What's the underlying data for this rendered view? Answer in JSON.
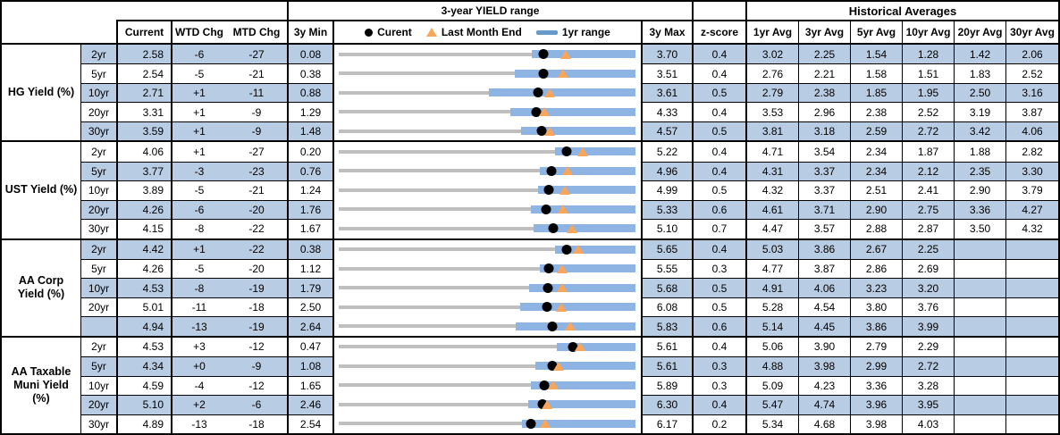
{
  "colors": {
    "stripe": "#B8CCE4",
    "bar": "#8DB4E2",
    "track": "#BFBFBF",
    "marker_current": "#000000",
    "marker_last_month_end": "#F9A65A",
    "border": "#000000"
  },
  "header": {
    "range_title": "3-year YIELD range",
    "hist_title": "Historical Averages",
    "current": "Current",
    "wtd": "WTD Chg",
    "mtd": "MTD Chg",
    "min": "3y Min",
    "max": "3y Max",
    "zscore": "z-score",
    "avgs": [
      "1yr Avg",
      "3yr Avg",
      "5yr Avg",
      "10yr Avg",
      "20yr Avg",
      "30yr Avg"
    ],
    "legend": {
      "current": "Curent",
      "last_month_end": "Last Month End",
      "range": "1yr range"
    }
  },
  "chart_data": {
    "type": "table",
    "title": "3-year YIELD range",
    "note": "Embedded bullet charts: x-axis spans 3y Min to 3y Max per row; black dot = Current, orange triangle = Last Month End (Current - MTD chg/100), blue bar = 1yr range (high coincides with 3y Max).",
    "groups": [
      {
        "label": "HG Yield (%)",
        "rows": [
          {
            "tenor": "2yr",
            "current": "2.58",
            "wtd": "-6",
            "mtd": "-27",
            "min": "0.08",
            "max": "3.70",
            "z": "0.4",
            "avgs": [
              "3.02",
              "2.25",
              "1.54",
              "1.28",
              "1.42",
              "2.06"
            ],
            "yr1_low": 2.43,
            "yr1_high": 3.7
          },
          {
            "tenor": "5yr",
            "current": "2.54",
            "wtd": "-5",
            "mtd": "-21",
            "min": "0.38",
            "max": "3.51",
            "z": "0.4",
            "avgs": [
              "2.76",
              "2.21",
              "1.58",
              "1.51",
              "1.83",
              "2.52"
            ],
            "yr1_low": 2.24,
            "yr1_high": 3.51
          },
          {
            "tenor": "10yr",
            "current": "2.71",
            "wtd": "+1",
            "mtd": "-11",
            "min": "0.88",
            "max": "3.61",
            "z": "0.5",
            "avgs": [
              "2.79",
              "2.38",
              "1.85",
              "1.95",
              "2.50",
              "3.16"
            ],
            "yr1_low": 2.26,
            "yr1_high": 3.61
          },
          {
            "tenor": "20yr",
            "current": "3.31",
            "wtd": "+1",
            "mtd": "-9",
            "min": "1.29",
            "max": "4.33",
            "z": "0.4",
            "avgs": [
              "3.53",
              "2.96",
              "2.38",
              "2.52",
              "3.19",
              "3.87"
            ],
            "yr1_low": 3.05,
            "yr1_high": 4.33
          },
          {
            "tenor": "30yr",
            "current": "3.59",
            "wtd": "+1",
            "mtd": "-9",
            "min": "1.48",
            "max": "4.57",
            "z": "0.5",
            "avgs": [
              "3.81",
              "3.18",
              "2.59",
              "2.72",
              "3.42",
              "4.06"
            ],
            "yr1_low": 3.38,
            "yr1_high": 4.57
          }
        ]
      },
      {
        "label": "UST Yield (%)",
        "rows": [
          {
            "tenor": "2yr",
            "current": "4.06",
            "wtd": "+1",
            "mtd": "-27",
            "min": "0.20",
            "max": "5.22",
            "z": "0.4",
            "avgs": [
              "4.71",
              "3.54",
              "2.34",
              "1.87",
              "1.88",
              "2.82"
            ],
            "yr1_low": 3.86,
            "yr1_high": 5.22
          },
          {
            "tenor": "5yr",
            "current": "3.77",
            "wtd": "-3",
            "mtd": "-23",
            "min": "0.76",
            "max": "4.96",
            "z": "0.4",
            "avgs": [
              "4.31",
              "3.37",
              "2.34",
              "2.12",
              "2.35",
              "3.30"
            ],
            "yr1_low": 3.61,
            "yr1_high": 4.96
          },
          {
            "tenor": "10yr",
            "current": "3.89",
            "wtd": "-5",
            "mtd": "-21",
            "min": "1.24",
            "max": "4.99",
            "z": "0.5",
            "avgs": [
              "4.32",
              "3.37",
              "2.51",
              "2.41",
              "2.90",
              "3.79"
            ],
            "yr1_low": 3.76,
            "yr1_high": 4.99
          },
          {
            "tenor": "20yr",
            "current": "4.26",
            "wtd": "-6",
            "mtd": "-20",
            "min": "1.76",
            "max": "5.33",
            "z": "0.6",
            "avgs": [
              "4.61",
              "3.71",
              "2.90",
              "2.75",
              "3.36",
              "4.27"
            ],
            "yr1_low": 4.07,
            "yr1_high": 5.33
          },
          {
            "tenor": "30yr",
            "current": "4.15",
            "wtd": "-8",
            "mtd": "-22",
            "min": "1.67",
            "max": "5.10",
            "z": "0.7",
            "avgs": [
              "4.47",
              "3.57",
              "2.88",
              "2.87",
              "3.50",
              "4.32"
            ],
            "yr1_low": 3.92,
            "yr1_high": 5.1
          }
        ]
      },
      {
        "label": "AA Corp Yield (%)",
        "rows": [
          {
            "tenor": "2yr",
            "current": "4.42",
            "wtd": "+1",
            "mtd": "-22",
            "min": "0.38",
            "max": "5.65",
            "z": "0.4",
            "avgs": [
              "5.03",
              "3.86",
              "2.67",
              "2.25",
              "",
              ""
            ],
            "yr1_low": 4.22,
            "yr1_high": 5.65
          },
          {
            "tenor": "5yr",
            "current": "4.26",
            "wtd": "-5",
            "mtd": "-20",
            "min": "1.12",
            "max": "5.55",
            "z": "0.3",
            "avgs": [
              "4.77",
              "3.87",
              "2.86",
              "2.69",
              "",
              ""
            ],
            "yr1_low": 4.12,
            "yr1_high": 5.55
          },
          {
            "tenor": "10yr",
            "current": "4.53",
            "wtd": "-8",
            "mtd": "-19",
            "min": "1.79",
            "max": "5.68",
            "z": "0.5",
            "avgs": [
              "4.91",
              "4.06",
              "3.23",
              "3.20",
              "",
              ""
            ],
            "yr1_low": 4.29,
            "yr1_high": 5.68
          },
          {
            "tenor": "20yr",
            "current": "5.01",
            "wtd": "-11",
            "mtd": "-18",
            "min": "2.50",
            "max": "6.08",
            "z": "0.5",
            "avgs": [
              "5.28",
              "4.54",
              "3.80",
              "3.76",
              "",
              ""
            ],
            "yr1_low": 4.69,
            "yr1_high": 6.08
          },
          {
            "tenor": "",
            "current": "4.94",
            "wtd": "-13",
            "mtd": "-19",
            "min": "2.64",
            "max": "5.83",
            "z": "0.6",
            "avgs": [
              "5.14",
              "4.45",
              "3.86",
              "3.99",
              "",
              ""
            ],
            "yr1_low": 4.54,
            "yr1_high": 5.83
          }
        ]
      },
      {
        "label": "AA Taxable Muni Yield (%)",
        "rows": [
          {
            "tenor": "2yr",
            "current": "4.53",
            "wtd": "+3",
            "mtd": "-12",
            "min": "0.47",
            "max": "5.61",
            "z": "0.4",
            "avgs": [
              "5.06",
              "3.90",
              "2.79",
              "2.29",
              "",
              ""
            ],
            "yr1_low": 4.24,
            "yr1_high": 5.61
          },
          {
            "tenor": "5yr",
            "current": "4.34",
            "wtd": "+0",
            "mtd": "-9",
            "min": "1.08",
            "max": "5.61",
            "z": "0.3",
            "avgs": [
              "4.88",
              "3.98",
              "2.99",
              "2.72",
              "",
              ""
            ],
            "yr1_low": 4.08,
            "yr1_high": 5.61
          },
          {
            "tenor": "10yr",
            "current": "4.59",
            "wtd": "-4",
            "mtd": "-12",
            "min": "1.65",
            "max": "5.89",
            "z": "0.3",
            "avgs": [
              "5.09",
              "4.23",
              "3.36",
              "3.28",
              "",
              ""
            ],
            "yr1_low": 4.4,
            "yr1_high": 5.89
          },
          {
            "tenor": "20yr",
            "current": "5.10",
            "wtd": "+2",
            "mtd": "-6",
            "min": "2.46",
            "max": "6.30",
            "z": "0.4",
            "avgs": [
              "5.47",
              "4.74",
              "3.96",
              "3.95",
              "",
              ""
            ],
            "yr1_low": 4.91,
            "yr1_high": 6.3
          },
          {
            "tenor": "30yr",
            "current": "4.89",
            "wtd": "-13",
            "mtd": "-18",
            "min": "2.54",
            "max": "6.17",
            "z": "0.2",
            "avgs": [
              "5.34",
              "4.68",
              "3.98",
              "4.03",
              "",
              ""
            ],
            "yr1_low": 4.78,
            "yr1_high": 6.17
          }
        ]
      }
    ]
  }
}
